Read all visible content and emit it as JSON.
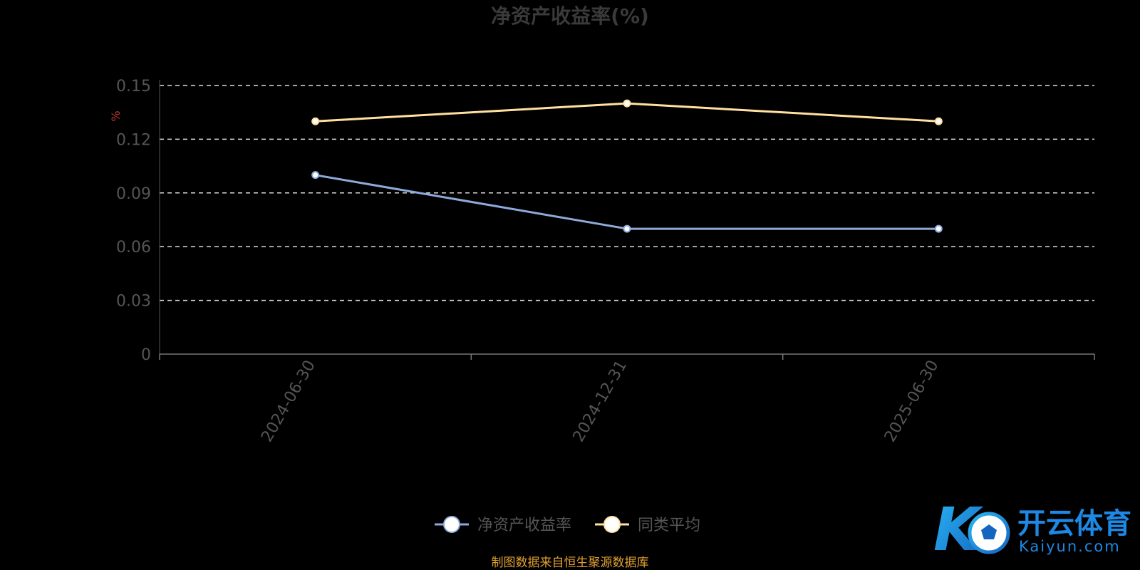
{
  "chart_data": {
    "type": "line",
    "title": "净资产收益率(%)",
    "ylabel": "%",
    "categories": [
      "2024-06-30",
      "2024-12-31",
      "2025-06-30"
    ],
    "yticks": [
      "0",
      "0.03",
      "0.06",
      "0.09",
      "0.12",
      "0.15"
    ],
    "ylim": [
      0,
      0.15
    ],
    "grid": true,
    "legend_position": "bottom",
    "series": [
      {
        "name": "净资产收益率",
        "values": [
          0.1,
          0.07,
          0.07
        ],
        "color": "#8eaadb"
      },
      {
        "name": "同类平均",
        "values": [
          0.13,
          0.14,
          0.13
        ],
        "color": "#ffe0a0"
      }
    ]
  },
  "source_note": "制图数据来自恒生聚源数据库",
  "watermark": {
    "cn": "开云体育",
    "en": "Kaiyun.com",
    "mark": "K"
  }
}
